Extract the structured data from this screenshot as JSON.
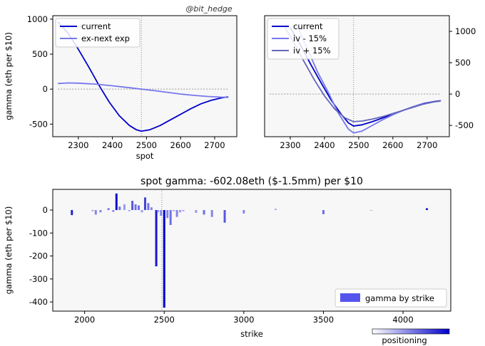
{
  "watermark": "@bit_hedge",
  "colors": {
    "current": "#0000cc",
    "light": "#7777ee",
    "mid": "#6666bb",
    "panel_bg": "#f7f7f7",
    "bar": "#5555ee"
  },
  "chart_data": [
    {
      "id": "top-left",
      "type": "line",
      "xlabel": "spot",
      "ylabel": "gamma (eth per $10)",
      "xlim": [
        2225,
        2765
      ],
      "ylim": [
        -680,
        1050
      ],
      "xticks": [
        2300,
        2400,
        2500,
        2600,
        2700
      ],
      "yticks": [
        -500,
        0,
        500,
        1000
      ],
      "vline": 2485,
      "hline": 0,
      "legend": "top-left",
      "series": [
        {
          "name": "current",
          "color": "#0000cc",
          "opacity": 1,
          "x": [
            2240,
            2270,
            2300,
            2330,
            2360,
            2390,
            2420,
            2450,
            2470,
            2485,
            2510,
            2540,
            2570,
            2600,
            2630,
            2660,
            2690,
            2720,
            2740
          ],
          "y": [
            960,
            800,
            570,
            320,
            60,
            -180,
            -380,
            -520,
            -580,
            -602,
            -580,
            -520,
            -440,
            -360,
            -280,
            -210,
            -160,
            -125,
            -110
          ]
        },
        {
          "name": "ex-next exp",
          "color": "#7777ee",
          "opacity": 1,
          "x": [
            2240,
            2270,
            2300,
            2350,
            2400,
            2450,
            2485,
            2520,
            2560,
            2600,
            2640,
            2680,
            2720,
            2740
          ],
          "y": [
            80,
            88,
            85,
            72,
            48,
            20,
            0,
            -20,
            -45,
            -70,
            -90,
            -105,
            -115,
            -118
          ]
        }
      ]
    },
    {
      "id": "top-right",
      "type": "line",
      "xlabel": "",
      "ylabel": "",
      "xlim": [
        2225,
        2765
      ],
      "ylim": [
        -680,
        1250
      ],
      "xticks": [
        2300,
        2400,
        2500,
        2600,
        2700
      ],
      "yticks": [
        -500,
        0,
        500,
        1000
      ],
      "vline": 2485,
      "hline": 0,
      "legend": "top-left",
      "series": [
        {
          "name": "current",
          "color": "#0000cc",
          "opacity": 1,
          "x": [
            2300,
            2330,
            2360,
            2390,
            2420,
            2450,
            2470,
            2485,
            2510,
            2540,
            2570,
            2600,
            2630,
            2660,
            2690,
            2720,
            2740
          ],
          "y": [
            1060,
            780,
            470,
            180,
            -100,
            -330,
            -460,
            -510,
            -490,
            -440,
            -380,
            -320,
            -260,
            -200,
            -150,
            -120,
            -105
          ]
        },
        {
          "name": "iv - 15%",
          "color": "#7777ee",
          "opacity": 1,
          "x": [
            2320,
            2350,
            2380,
            2410,
            2440,
            2470,
            2485,
            2510,
            2540,
            2570,
            2600,
            2630,
            2660,
            2690,
            2720,
            2740
          ],
          "y": [
            1080,
            720,
            350,
            40,
            -300,
            -560,
            -620,
            -590,
            -500,
            -410,
            -330,
            -260,
            -200,
            -155,
            -125,
            -110
          ]
        },
        {
          "name": "iv + 15%",
          "color": "#6666bb",
          "opacity": 1,
          "x": [
            2285,
            2310,
            2340,
            2370,
            2400,
            2430,
            2460,
            2485,
            2510,
            2540,
            2570,
            2600,
            2630,
            2660,
            2690,
            2720,
            2740
          ],
          "y": [
            1060,
            820,
            520,
            230,
            -30,
            -240,
            -380,
            -440,
            -430,
            -400,
            -360,
            -310,
            -260,
            -210,
            -160,
            -125,
            -110
          ]
        }
      ]
    },
    {
      "id": "bottom",
      "type": "bar",
      "title": "spot gamma: -602.08eth ($-1.5mm) per $10",
      "xlabel": "strike",
      "ylabel": "gamma (eth per $10)",
      "xlim": [
        1800,
        4300
      ],
      "ylim": [
        -440,
        90
      ],
      "xticks": [
        2000,
        2500,
        3000,
        3500,
        4000
      ],
      "yticks": [
        -400,
        -300,
        -200,
        -100,
        0
      ],
      "vline": 2485,
      "legend": "bottom-right",
      "legend_label": "gamma by strike",
      "colorbar_label": "positioning",
      "bars": [
        {
          "x": 1920,
          "y": -22,
          "w": 0.85
        },
        {
          "x": 2050,
          "y": -5,
          "w": 0.3
        },
        {
          "x": 2070,
          "y": -20,
          "w": 0.4
        },
        {
          "x": 2100,
          "y": -10,
          "w": 0.4
        },
        {
          "x": 2150,
          "y": 8,
          "w": 0.5
        },
        {
          "x": 2180,
          "y": -8,
          "w": 0.4
        },
        {
          "x": 2200,
          "y": 72,
          "w": 0.95
        },
        {
          "x": 2220,
          "y": 15,
          "w": 0.5
        },
        {
          "x": 2250,
          "y": 25,
          "w": 0.3
        },
        {
          "x": 2280,
          "y": -5,
          "w": 0.3
        },
        {
          "x": 2300,
          "y": 40,
          "w": 0.6
        },
        {
          "x": 2320,
          "y": 25,
          "w": 0.5
        },
        {
          "x": 2340,
          "y": 20,
          "w": 0.5
        },
        {
          "x": 2360,
          "y": -10,
          "w": 0.3
        },
        {
          "x": 2380,
          "y": 55,
          "w": 0.7
        },
        {
          "x": 2400,
          "y": 30,
          "w": 0.5
        },
        {
          "x": 2420,
          "y": 12,
          "w": 0.4
        },
        {
          "x": 2450,
          "y": -245,
          "w": 0.9
        },
        {
          "x": 2460,
          "y": -10,
          "w": 0.4
        },
        {
          "x": 2480,
          "y": -25,
          "w": 0.4
        },
        {
          "x": 2500,
          "y": -425,
          "w": 1.0
        },
        {
          "x": 2520,
          "y": -35,
          "w": 0.4
        },
        {
          "x": 2540,
          "y": -65,
          "w": 0.5
        },
        {
          "x": 2560,
          "y": -5,
          "w": 0.3
        },
        {
          "x": 2580,
          "y": -30,
          "w": 0.4
        },
        {
          "x": 2600,
          "y": -10,
          "w": 0.3
        },
        {
          "x": 2620,
          "y": -5,
          "w": 0.3
        },
        {
          "x": 2700,
          "y": -12,
          "w": 0.3
        },
        {
          "x": 2750,
          "y": -20,
          "w": 0.5
        },
        {
          "x": 2800,
          "y": -30,
          "w": 0.4
        },
        {
          "x": 2880,
          "y": -55,
          "w": 0.6
        },
        {
          "x": 3000,
          "y": -15,
          "w": 0.4
        },
        {
          "x": 3200,
          "y": 5,
          "w": 0.3
        },
        {
          "x": 3500,
          "y": -18,
          "w": 0.5
        },
        {
          "x": 3800,
          "y": -3,
          "w": 0.2
        },
        {
          "x": 4150,
          "y": 8,
          "w": 0.9
        }
      ]
    }
  ]
}
